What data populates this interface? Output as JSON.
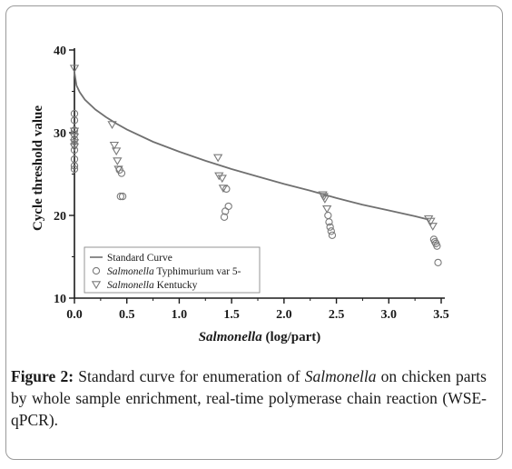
{
  "chart_data": {
    "type": "scatter",
    "xlabel_italic": "Salmonella",
    "xlabel_rest": " (log/part)",
    "ylabel": "Cycle threshold value",
    "xlim": [
      0.0,
      3.5
    ],
    "ylim": [
      10,
      40
    ],
    "x_ticks": [
      "0.0",
      "0.5",
      "1.0",
      "1.5",
      "2.0",
      "2.5",
      "3.0",
      "3.5"
    ],
    "y_ticks": [
      "10",
      "20",
      "30",
      "40"
    ],
    "grid": false,
    "legend_position": "bottom-left",
    "series": [
      {
        "name": "Standard Curve",
        "kind": "line",
        "color": "#707070",
        "x": [
          0.0,
          0.02,
          0.05,
          0.1,
          0.2,
          0.3,
          0.4,
          0.5,
          0.75,
          1.0,
          1.25,
          1.5,
          1.75,
          2.0,
          2.25,
          2.5,
          2.75,
          3.0,
          3.25,
          3.38
        ],
        "y": [
          37.3,
          35.7,
          34.9,
          34.0,
          32.8,
          31.9,
          31.1,
          30.4,
          28.9,
          27.7,
          26.6,
          25.6,
          24.7,
          23.8,
          23.0,
          22.1,
          21.3,
          20.6,
          19.9,
          19.5
        ]
      },
      {
        "name_italic": "Salmonella",
        "name_rest": " Typhimurium var 5-",
        "kind": "scatter",
        "marker": "circle",
        "color": "#7a7a7a",
        "x": [
          0.0,
          0.0,
          0.0,
          0.0,
          0.0,
          0.0,
          0.0,
          0.0,
          0.0,
          0.0,
          0.43,
          0.45,
          0.44,
          0.46,
          1.45,
          1.47,
          1.44,
          1.43,
          2.42,
          2.43,
          2.44,
          2.45,
          2.46,
          3.43,
          3.44,
          3.45,
          3.46,
          3.47
        ],
        "y": [
          32.3,
          31.5,
          30.3,
          29.8,
          29.2,
          28.6,
          27.9,
          26.8,
          26.0,
          25.6,
          25.5,
          25.1,
          22.3,
          22.3,
          23.2,
          21.1,
          20.5,
          19.8,
          20.0,
          19.2,
          18.6,
          18.1,
          17.6,
          17.1,
          16.8,
          16.6,
          16.3,
          14.3
        ]
      },
      {
        "name_italic": "Salmonella",
        "name_rest": " Kentucky",
        "kind": "scatter",
        "marker": "triangle-down",
        "color": "#7a7a7a",
        "x": [
          0.0,
          0.0,
          0.0,
          0.0,
          0.0,
          0.36,
          0.38,
          0.4,
          0.41,
          0.42,
          1.37,
          1.38,
          1.41,
          1.42,
          2.37,
          2.38,
          2.39,
          2.41,
          3.38,
          3.4,
          3.42
        ],
        "y": [
          37.8,
          30.2,
          29.5,
          28.8,
          28.3,
          31.0,
          28.5,
          27.8,
          26.6,
          25.6,
          27.0,
          24.8,
          24.5,
          23.3,
          22.5,
          22.3,
          22.0,
          20.8,
          19.6,
          19.3,
          18.7
        ]
      }
    ]
  },
  "caption": {
    "label": "Figure 2:",
    "text_before": " Standard curve for enumeration of ",
    "italic": "Salmonella",
    "text_after": " on chicken parts by whole sample enrichment, real-time polymerase chain reaction (WSE-qPCR)."
  },
  "colors": {
    "axis": "#1a1a1a",
    "curve": "#707070",
    "marker": "#7a7a7a",
    "frame": "#9a9a9a"
  }
}
